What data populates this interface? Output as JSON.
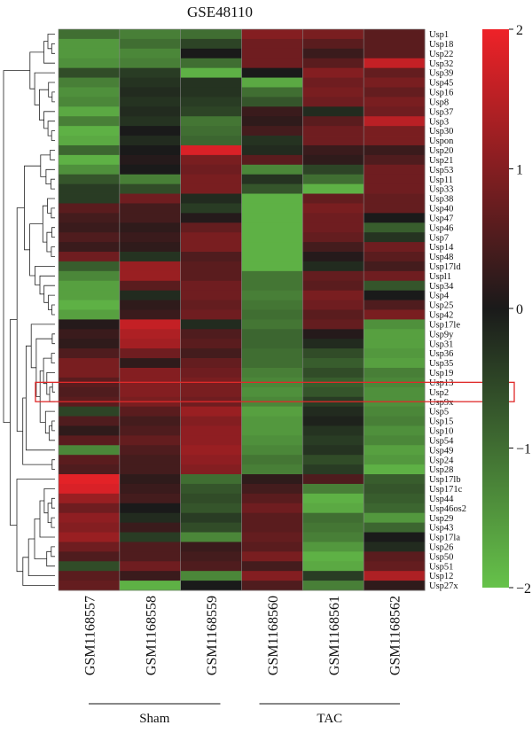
{
  "chart_data": {
    "type": "heatmap",
    "title": "GSE48110",
    "columns": [
      "GSM1168557",
      "GSM1168558",
      "GSM1168559",
      "GSM1168560",
      "GSM1168561",
      "GSM1168562"
    ],
    "groups": [
      {
        "name": "Sham",
        "columns": [
          "GSM1168557",
          "GSM1168558",
          "GSM1168559"
        ]
      },
      {
        "name": "TAC",
        "columns": [
          "GSM1168560",
          "GSM1168561",
          "GSM1168562"
        ]
      }
    ],
    "rows": [
      "Usp1",
      "Usp18",
      "Usp22",
      "Usp32",
      "Usp39",
      "Usp45",
      "Usp16",
      "Usp8",
      "Usp37",
      "Usp3",
      "Usp30",
      "Uspon",
      "Usp20",
      "Usp21",
      "Usp53",
      "Usp11",
      "Usp33",
      "Usp38",
      "Usp40",
      "Usp47",
      "Usp46",
      "Usp7",
      "Usp14",
      "Usp48",
      "Usp17ld",
      "Uspl1",
      "Usp34",
      "Usp4",
      "Usp25",
      "Usp42",
      "Usp17le",
      "Usp9y",
      "Usp31",
      "Usp36",
      "Usp35",
      "Usp19",
      "Usp13",
      "Usp2",
      "Usp9x",
      "Usp5",
      "Usp15",
      "Usp10",
      "Usp54",
      "Usp49",
      "Usp24",
      "Usp28",
      "Usp17lb",
      "Usp171c",
      "Usp44",
      "Usp46os2",
      "Usp29",
      "Usp43",
      "Usp17la",
      "Usp26",
      "Usp50",
      "Usp51",
      "Usp12",
      "Usp27x"
    ],
    "values": [
      [
        -1.0,
        -1.2,
        -1.0,
        1.0,
        0.9,
        0.6
      ],
      [
        -1.5,
        -1.0,
        -0.5,
        0.8,
        0.6,
        0.6
      ],
      [
        -1.5,
        -1.3,
        0.0,
        0.8,
        0.3,
        0.6
      ],
      [
        -1.4,
        -1.2,
        -1.0,
        0.8,
        0.6,
        1.6
      ],
      [
        -0.6,
        -0.4,
        -1.8,
        0.0,
        1.0,
        0.7
      ],
      [
        -1.2,
        -0.3,
        -0.3,
        -1.7,
        0.8,
        0.9
      ],
      [
        -1.4,
        -0.2,
        -0.3,
        -1.0,
        0.9,
        0.7
      ],
      [
        -1.3,
        -0.3,
        -0.4,
        -0.7,
        0.8,
        0.9
      ],
      [
        -1.7,
        -0.2,
        -0.5,
        0.3,
        -0.2,
        0.8
      ],
      [
        -1.2,
        -0.3,
        -1.1,
        0.2,
        0.6,
        1.5
      ],
      [
        -1.8,
        0.0,
        -1.0,
        0.4,
        0.8,
        0.9
      ],
      [
        -1.7,
        -0.2,
        -0.9,
        -0.3,
        0.8,
        0.9
      ],
      [
        -0.9,
        0.0,
        1.8,
        -0.2,
        0.3,
        0.3
      ],
      [
        -1.8,
        0.1,
        0.9,
        0.6,
        0.2,
        0.5
      ],
      [
        -1.4,
        0.0,
        0.8,
        -1.3,
        -0.5,
        0.8
      ],
      [
        -0.7,
        -1.2,
        0.9,
        -0.3,
        -1.0,
        0.8
      ],
      [
        -0.4,
        -0.6,
        0.9,
        -0.7,
        -1.8,
        0.8
      ],
      [
        -0.4,
        0.8,
        -0.2,
        -1.8,
        0.7,
        0.7
      ],
      [
        0.6,
        0.4,
        -0.4,
        -1.8,
        0.9,
        0.7
      ],
      [
        0.4,
        0.4,
        0.1,
        -1.8,
        0.8,
        0.0
      ],
      [
        0.3,
        0.2,
        0.7,
        -1.8,
        0.8,
        -0.8
      ],
      [
        0.5,
        0.3,
        0.9,
        -1.8,
        0.7,
        -0.3
      ],
      [
        0.3,
        0.2,
        0.9,
        -1.8,
        0.4,
        0.8
      ],
      [
        0.8,
        -0.3,
        0.5,
        -1.8,
        0.1,
        0.6
      ],
      [
        -0.8,
        1.2,
        0.6,
        -1.8,
        -0.2,
        0.4
      ],
      [
        -1.3,
        1.2,
        0.6,
        -1.1,
        0.7,
        0.8
      ],
      [
        -1.6,
        0.6,
        0.8,
        -1.1,
        0.6,
        -0.7
      ],
      [
        -1.6,
        -0.2,
        0.8,
        -1.2,
        0.9,
        0.0
      ],
      [
        -1.8,
        0.2,
        0.7,
        -1.1,
        0.8,
        0.5
      ],
      [
        -1.6,
        0.3,
        0.8,
        -1.0,
        0.6,
        0.9
      ],
      [
        0.1,
        1.6,
        -0.2,
        -1.1,
        0.7,
        -1.4
      ],
      [
        0.3,
        1.4,
        0.5,
        -0.9,
        0.1,
        -1.6
      ],
      [
        0.2,
        1.3,
        0.6,
        -0.9,
        -0.2,
        -1.6
      ],
      [
        0.5,
        0.8,
        0.4,
        -1.0,
        -0.6,
        -1.5
      ],
      [
        0.9,
        0.2,
        0.7,
        -1.0,
        -0.8,
        -1.6
      ],
      [
        0.9,
        1.0,
        0.8,
        -1.2,
        -0.6,
        -1.2
      ],
      [
        0.6,
        1.0,
        0.9,
        -1.3,
        -0.8,
        -1.3
      ],
      [
        0.5,
        1.0,
        0.9,
        -1.4,
        -0.7,
        -1.4
      ],
      [
        0.6,
        0.9,
        0.8,
        -1.3,
        -0.4,
        -1.4
      ],
      [
        -0.5,
        0.6,
        1.2,
        -1.6,
        -0.2,
        -1.3
      ],
      [
        0.5,
        0.4,
        1.0,
        -1.5,
        -0.1,
        -1.2
      ],
      [
        0.2,
        0.5,
        1.1,
        -1.5,
        -0.3,
        -1.4
      ],
      [
        0.6,
        0.7,
        1.1,
        -1.4,
        -0.4,
        -1.3
      ],
      [
        -1.3,
        0.5,
        1.2,
        -1.3,
        -0.3,
        -1.6
      ],
      [
        0.6,
        0.4,
        1.1,
        -1.1,
        -0.6,
        -1.5
      ],
      [
        0.5,
        0.4,
        1.0,
        -1.2,
        -0.4,
        -1.8
      ],
      [
        1.9,
        0.2,
        -1.0,
        0.2,
        0.5,
        -0.8
      ],
      [
        1.8,
        0.3,
        -0.7,
        0.4,
        -1.2,
        -0.7
      ],
      [
        1.2,
        0.4,
        -0.6,
        0.6,
        -1.8,
        -0.8
      ],
      [
        0.8,
        0.0,
        -0.7,
        0.8,
        -1.7,
        -0.9
      ],
      [
        1.1,
        -0.2,
        -0.4,
        0.6,
        -1.0,
        -1.5
      ],
      [
        1.0,
        0.3,
        -0.6,
        0.6,
        -1.1,
        -0.9
      ],
      [
        1.2,
        -0.4,
        -1.3,
        0.7,
        -1.2,
        0.0
      ],
      [
        0.8,
        0.5,
        0.3,
        0.6,
        -1.5,
        -0.2
      ],
      [
        0.5,
        0.5,
        0.4,
        0.9,
        -1.8,
        0.6
      ],
      [
        -0.6,
        0.8,
        0.5,
        0.4,
        -1.7,
        0.7
      ],
      [
        0.6,
        0.3,
        -1.3,
        1.0,
        -0.4,
        1.4
      ],
      [
        0.7,
        -1.8,
        0.0,
        0.5,
        -1.2,
        0.2
      ]
    ],
    "scale": {
      "min": -2,
      "max": 2,
      "ticks": [
        2,
        1,
        0,
        -1,
        -2
      ],
      "tick_labels": [
        "2",
        "1",
        "0",
        "−1",
        "−2"
      ]
    },
    "colors": {
      "low": "#66c24a",
      "mid": "#1a1a1a",
      "high": "#ee2228"
    },
    "highlight": {
      "row": "Usp2",
      "color": "#e02a2a"
    },
    "dendrogram": {
      "side": "left"
    }
  }
}
